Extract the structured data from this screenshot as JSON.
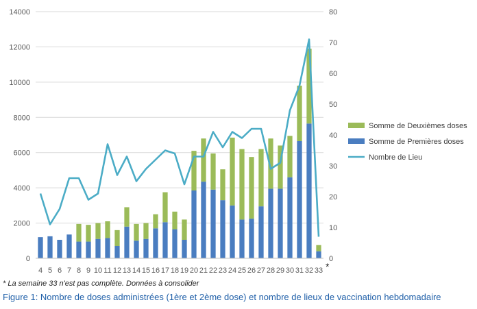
{
  "chart_data": {
    "type": "bar",
    "stacked": true,
    "categories": [
      "4",
      "5",
      "6",
      "7",
      "8",
      "9",
      "10",
      "11",
      "12",
      "13",
      "14",
      "15",
      "16",
      "17",
      "18",
      "19",
      "20",
      "21",
      "22",
      "23",
      "24",
      "25",
      "26",
      "27",
      "28",
      "29",
      "30",
      "31",
      "32",
      "33"
    ],
    "last_category_marker": "*",
    "series": [
      {
        "name": "Somme de Premières doses",
        "kind": "bar",
        "axis": "left",
        "color": "#4a7dc0",
        "values": [
          1200,
          1250,
          1050,
          1350,
          950,
          950,
          1100,
          1150,
          700,
          1800,
          1000,
          1100,
          1700,
          2050,
          1650,
          1050,
          3850,
          4350,
          3900,
          3300,
          3000,
          2200,
          2250,
          2950,
          3950,
          3950,
          4600,
          6650,
          7650,
          400
        ]
      },
      {
        "name": "Somme de Deuxièmes doses",
        "kind": "bar",
        "axis": "left",
        "color": "#9bbb59",
        "values": [
          0,
          0,
          0,
          0,
          1000,
          950,
          900,
          950,
          900,
          1100,
          950,
          900,
          800,
          1700,
          1000,
          1150,
          2250,
          2450,
          2050,
          1750,
          3850,
          4000,
          3500,
          3250,
          2850,
          2450,
          2350,
          3150,
          4250,
          350
        ]
      },
      {
        "name": "Nombre de Lieu",
        "kind": "line",
        "axis": "right",
        "color": "#4bacc6",
        "values": [
          21,
          11,
          16,
          26,
          26,
          19,
          21,
          37,
          27,
          33,
          25,
          29,
          32,
          35,
          34,
          24,
          33,
          33,
          41,
          36,
          41,
          39,
          42,
          42,
          29,
          31,
          48,
          56,
          71,
          7
        ]
      }
    ],
    "legend_order": [
      "Somme de Deuxièmes doses",
      "Somme de Premières doses",
      "Nombre de Lieu"
    ],
    "legend_position": "right",
    "ylim": [
      0,
      14000
    ],
    "yticks": [
      "0",
      "2000",
      "4000",
      "6000",
      "8000",
      "10000",
      "12000",
      "14000"
    ],
    "y2lim": [
      0,
      80
    ],
    "y2ticks": [
      "0",
      "10",
      "20",
      "30",
      "40",
      "50",
      "60",
      "70",
      "80"
    ],
    "grid": true,
    "footnote": "* La semaine 33 n'est pas complète. Données à consolider",
    "caption": "Figure 1: Nombre de doses administrées (1ère et 2ème dose) et nombre de lieux de vaccination hebdomadaire"
  }
}
